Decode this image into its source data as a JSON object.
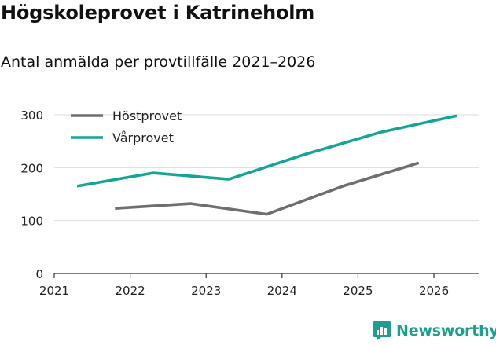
{
  "title": "Högskoleprovet i Katrineholm",
  "subtitle": "Antal anmälda per provtillfälle 2021–2026",
  "brand": "Newsworthy",
  "colors": {
    "host": "#6e6e73",
    "var": "#14a596",
    "grid": "#dddddd",
    "axis": "#333333",
    "brand": "#1e9e91"
  },
  "chart_data": {
    "type": "line",
    "title": "Högskoleprovet i Katrineholm",
    "subtitle": "Antal anmälda per provtillfälle 2021–2026",
    "xlabel": "",
    "ylabel": "",
    "ylim": [
      0,
      300
    ],
    "yticks": [
      0,
      100,
      200,
      300
    ],
    "xticks": [
      2021,
      2022,
      2023,
      2024,
      2025,
      2026
    ],
    "xlim": [
      2021,
      2026.6
    ],
    "legend_position": "top-left",
    "series": [
      {
        "name": "Höstprovet",
        "color": "#6e6e73",
        "x": [
          2021.8,
          2022.8,
          2023.8,
          2024.8,
          2025.8
        ],
        "values": [
          123,
          132,
          112,
          165,
          209
        ]
      },
      {
        "name": "Vårprovet",
        "color": "#14a596",
        "x": [
          2021.3,
          2022.3,
          2023.3,
          2024.3,
          2025.3,
          2026.3
        ],
        "values": [
          165,
          190,
          178,
          225,
          267,
          298
        ]
      }
    ]
  }
}
